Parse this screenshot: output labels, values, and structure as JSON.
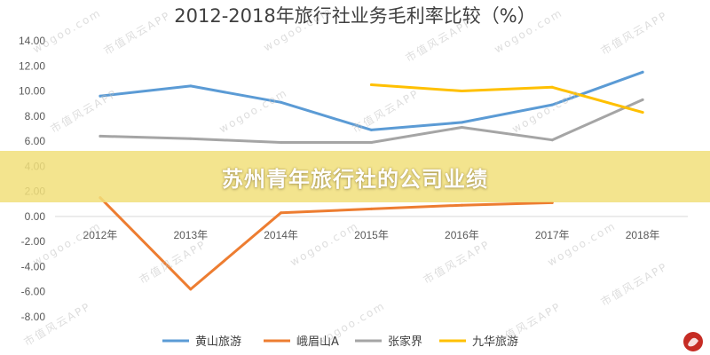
{
  "watermark": {
    "site": "wogoo.com",
    "app": "市值风云APP"
  },
  "banner": {
    "text": "苏州青年旅行社的公司业绩",
    "color": "#f1df7a"
  },
  "logo": {
    "icon": "shizhifengyun-logo-icon",
    "color": "#c62c24"
  },
  "chart_data": {
    "type": "line",
    "title": "2012-2018年旅行社业务毛利率比较（%）",
    "categories": [
      "2012年",
      "2013年",
      "2014年",
      "2015年",
      "2016年",
      "2017年",
      "2018年"
    ],
    "y_ticks": [
      "14.00",
      "12.00",
      "10.00",
      "8.00",
      "6.00",
      "4.00",
      "2.00",
      "0.00",
      "-2.00",
      "-4.00",
      "-6.00",
      "-8.00"
    ],
    "ylim": [
      -8,
      14
    ],
    "grid": false,
    "legend_position": "bottom",
    "series": [
      {
        "name": "黄山旅游",
        "color": "#5b9bd5",
        "values": [
          9.6,
          10.4,
          9.1,
          6.9,
          7.5,
          8.9,
          11.5
        ]
      },
      {
        "name": "峨眉山A",
        "color": "#ed7d31",
        "values": [
          1.5,
          -5.8,
          0.3,
          0.6,
          0.9,
          1.1,
          null
        ]
      },
      {
        "name": "张家界",
        "color": "#a5a5a5",
        "values": [
          6.4,
          6.2,
          5.9,
          5.9,
          7.1,
          6.1,
          9.3
        ]
      },
      {
        "name": "九华旅游",
        "color": "#ffc000",
        "values": [
          null,
          null,
          null,
          10.5,
          10.0,
          10.3,
          8.3
        ]
      }
    ]
  }
}
